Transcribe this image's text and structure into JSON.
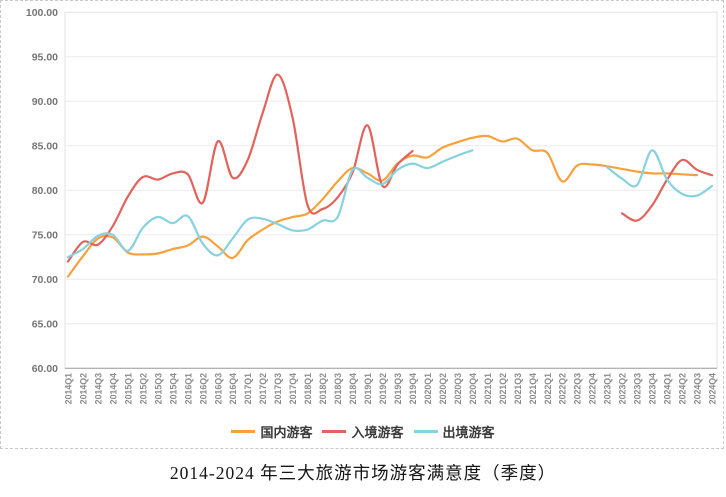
{
  "chart_data": {
    "type": "line",
    "title": "2014-2024 年三大旅游市场游客满意度（季度）",
    "xlabel": "",
    "ylabel": "",
    "ylim": [
      60,
      100
    ],
    "ytick_step": 5,
    "ytick_labels": [
      "100.00",
      "95.00",
      "90.00",
      "85.00",
      "80.00",
      "75.00",
      "70.00",
      "65.00",
      "60.00"
    ],
    "grid": true,
    "legend_position": "bottom",
    "categories": [
      "2014Q1",
      "2014Q2",
      "2014Q3",
      "2014Q4",
      "2015Q1",
      "2015Q2",
      "2015Q3",
      "2015Q4",
      "2016Q1",
      "2016Q2",
      "2016Q3",
      "2016Q4",
      "2017Q1",
      "2017Q2",
      "2017Q3",
      "2017Q4",
      "2018Q1",
      "2018Q2",
      "2018Q3",
      "2018Q4",
      "2019Q1",
      "2019Q2",
      "2019Q3",
      "2019Q4",
      "2020Q1",
      "2020Q2",
      "2020Q3",
      "2020Q4",
      "2021Q1",
      "2021Q2",
      "2021Q3",
      "2021Q4",
      "2022Q1",
      "2022Q2",
      "2022Q3",
      "2022Q4",
      "2023Q1",
      "2023Q2",
      "2023Q3",
      "2023Q4",
      "2024Q1",
      "2024Q2",
      "2024Q3",
      "2024Q4"
    ],
    "series": [
      {
        "key": "domestic",
        "name": "国内游客",
        "color": "#F7A13D",
        "values": [
          70.3,
          72.6,
          74.6,
          74.7,
          73.0,
          72.8,
          72.9,
          73.4,
          73.8,
          74.8,
          73.7,
          72.4,
          74.4,
          75.6,
          76.5,
          77.0,
          77.4,
          79.0,
          81.0,
          82.5,
          81.9,
          81.1,
          83.0,
          83.9,
          83.7,
          84.8,
          85.4,
          85.9,
          86.1,
          85.5,
          85.8,
          84.5,
          84.2,
          81.0,
          82.8,
          82.9,
          82.7,
          82.4,
          82.1,
          81.9,
          81.9,
          81.8,
          81.7,
          null
        ]
      },
      {
        "key": "inbound",
        "name": "入境游客",
        "color": "#E2635C",
        "values": [
          72.0,
          74.2,
          73.9,
          76.0,
          79.3,
          81.5,
          81.2,
          81.9,
          81.8,
          78.6,
          85.5,
          81.4,
          83.4,
          88.7,
          93.0,
          88.1,
          78.3,
          77.9,
          79.2,
          82.0,
          87.3,
          80.5,
          82.9,
          84.4,
          null,
          null,
          null,
          null,
          null,
          null,
          null,
          null,
          null,
          null,
          null,
          null,
          null,
          77.4,
          76.6,
          78.3,
          81.2,
          83.4,
          82.3,
          81.7
        ]
      },
      {
        "key": "outbound",
        "name": "出境游客",
        "color": "#87D1E1",
        "values": [
          72.5,
          73.4,
          74.9,
          75.0,
          73.2,
          75.8,
          77.0,
          76.3,
          77.1,
          74.0,
          72.7,
          74.6,
          76.7,
          76.8,
          76.2,
          75.5,
          75.6,
          76.6,
          77.0,
          82.3,
          81.4,
          80.7,
          82.3,
          83.0,
          82.5,
          83.2,
          83.9,
          84.5,
          null,
          null,
          null,
          null,
          null,
          null,
          null,
          null,
          82.6,
          81.3,
          80.6,
          84.5,
          81.2,
          79.6,
          79.4,
          80.5
        ]
      }
    ]
  }
}
